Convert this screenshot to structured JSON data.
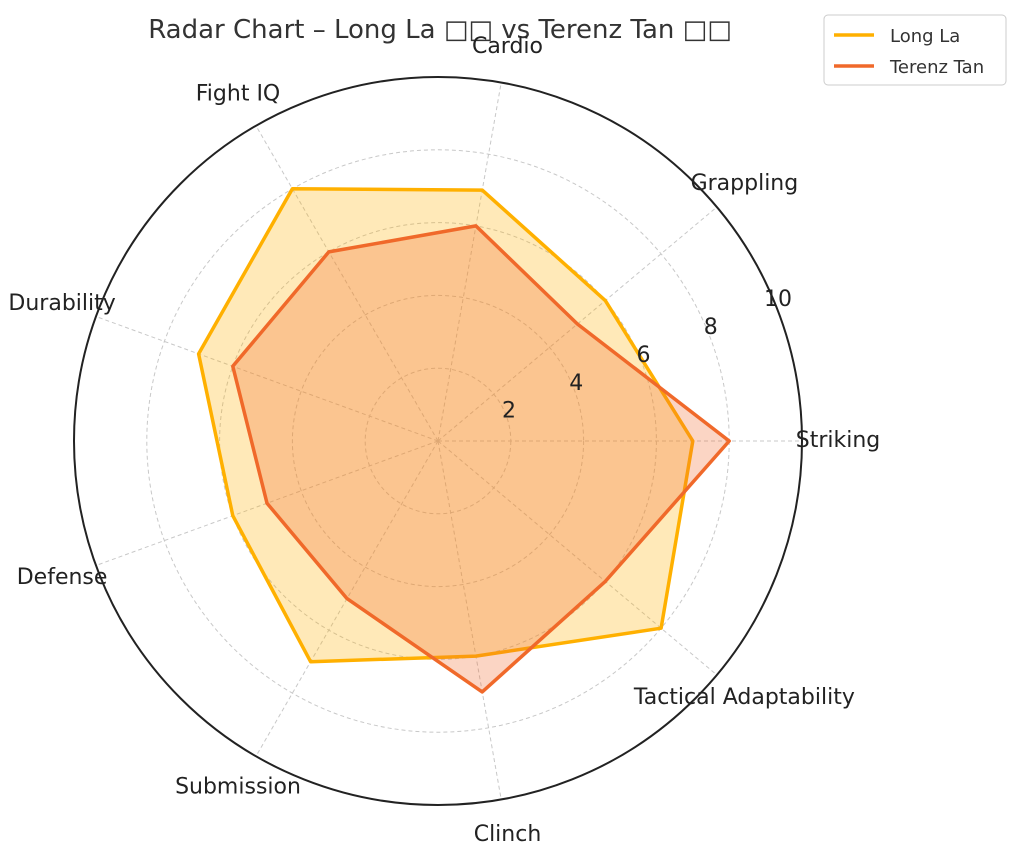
{
  "chart_data": {
    "type": "radar",
    "title": "Radar Chart – Long La □□ vs Terenz Tan □□",
    "axes": [
      "Striking",
      "Grappling",
      "Cardio",
      "Fight IQ",
      "Durability",
      "Defense",
      "Submission",
      "Clinch",
      "Tactical Adaptability"
    ],
    "rlim": [
      0,
      10
    ],
    "rticks": [
      "2",
      "4",
      "6",
      "8",
      "10"
    ],
    "grid": true,
    "legend_position": "top-right",
    "series": [
      {
        "name": "Long La",
        "color": "#FFB000",
        "values": [
          7,
          6,
          7,
          8,
          7,
          6,
          7,
          6,
          8
        ]
      },
      {
        "name": "Terenz Tan",
        "color": "#F0692A",
        "values": [
          8,
          5,
          6,
          6,
          6,
          5,
          5,
          7,
          6
        ]
      }
    ]
  }
}
